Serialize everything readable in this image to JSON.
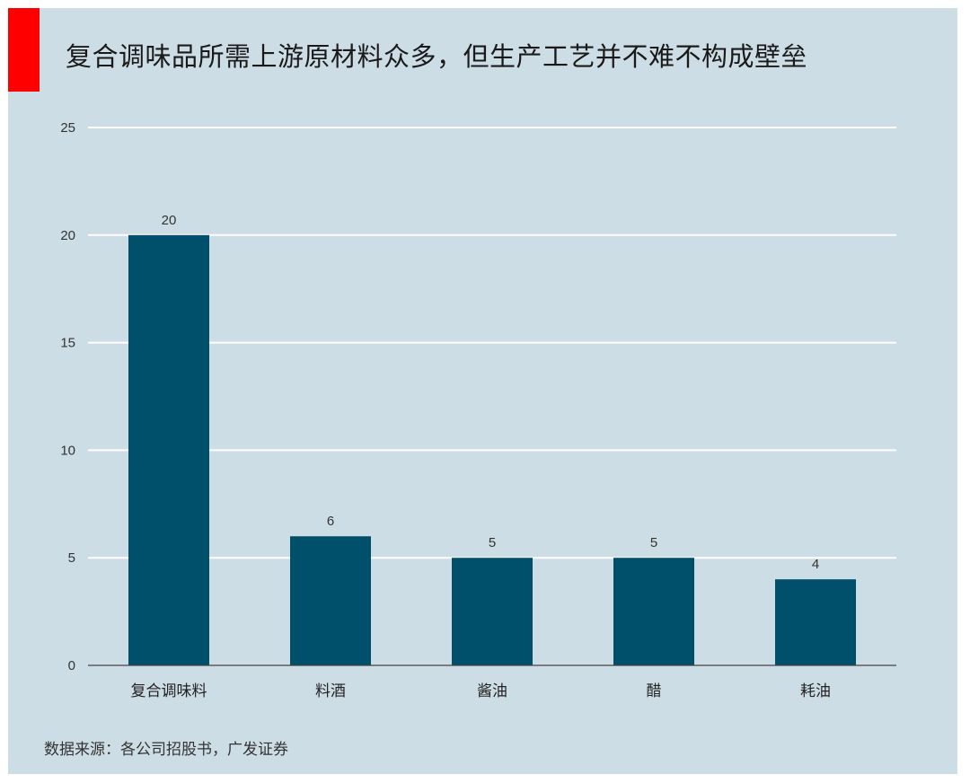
{
  "title": "复合调味品所需上游原材料众多，但生产工艺并不难不构成壁垒",
  "source": "数据来源：各公司招股书，广发证券",
  "colors": {
    "accent": "#ff0000",
    "background": "#cddde5",
    "bar": "#00506b",
    "gridline": "#ffffff"
  },
  "chart_data": {
    "type": "bar",
    "categories": [
      "复合调味料",
      "料酒",
      "酱油",
      "醋",
      "耗油"
    ],
    "values": [
      20,
      6,
      5,
      5,
      4
    ],
    "data_labels": [
      "20",
      "6",
      "5",
      "5",
      "4"
    ],
    "ylim": [
      0,
      25
    ],
    "yticks": [
      0,
      5,
      10,
      15,
      20,
      25
    ],
    "grid": true,
    "legend": "none"
  }
}
